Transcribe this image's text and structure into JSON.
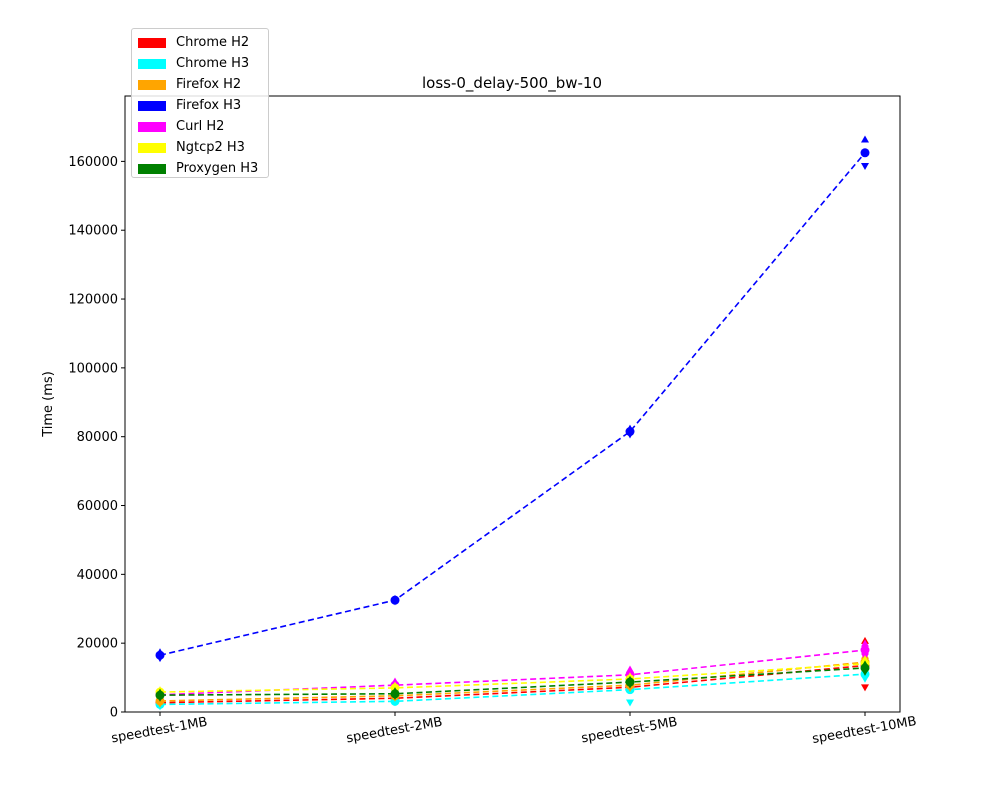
{
  "chart_data": {
    "type": "line",
    "title": "loss-0_delay-500_bw-10",
    "xlabel": "",
    "ylabel": "Time (ms)",
    "categories": [
      "speedtest-1MB",
      "speedtest-2MB",
      "speedtest-5MB",
      "speedtest-10MB"
    ],
    "ylim": [
      0,
      179000
    ],
    "yticks": [
      0,
      20000,
      40000,
      60000,
      80000,
      100000,
      120000,
      140000,
      160000
    ],
    "ytick_labels": [
      "0",
      "20000",
      "40000",
      "60000",
      "80000",
      "100000",
      "120000",
      "140000",
      "160000"
    ],
    "legend_position": "top-left (outside)",
    "grid": false,
    "series": [
      {
        "name": "Chrome H2",
        "color": "#ff0000",
        "values": [
          2700,
          4000,
          7200,
          13500
        ],
        "min": [
          2300,
          3500,
          6500,
          7000
        ],
        "max": [
          3200,
          4500,
          7900,
          20800
        ]
      },
      {
        "name": "Chrome H3",
        "color": "#00ffff",
        "values": [
          2200,
          3100,
          6500,
          11000
        ],
        "min": [
          1500,
          2700,
          2600,
          9500
        ],
        "max": [
          2900,
          3600,
          7200,
          12500
        ]
      },
      {
        "name": "Firefox H2",
        "color": "#ffa500",
        "values": [
          3200,
          4700,
          7800,
          14500
        ],
        "min": [
          2300,
          4000,
          6800,
          12500
        ],
        "max": [
          4200,
          5400,
          8600,
          16500
        ]
      },
      {
        "name": "Firefox H3",
        "color": "#0000ff",
        "values": [
          16500,
          32500,
          81500,
          162500
        ],
        "min": [
          15500,
          32000,
          80500,
          158500
        ],
        "max": [
          17500,
          33000,
          82500,
          166500
        ]
      },
      {
        "name": "Curl H2",
        "color": "#ff00ff",
        "values": [
          5000,
          7800,
          10800,
          18000
        ],
        "min": [
          4500,
          7000,
          9500,
          16000
        ],
        "max": [
          5800,
          9000,
          12500,
          20000
        ]
      },
      {
        "name": "Ngtcp2 H3",
        "color": "#ffff00",
        "values": [
          5800,
          7000,
          9600,
          14000
        ],
        "min": [
          5000,
          6200,
          8500,
          12500
        ],
        "max": [
          6500,
          7800,
          10500,
          15500
        ]
      },
      {
        "name": "Proxygen H3",
        "color": "#008000",
        "values": [
          4900,
          5300,
          8700,
          12800
        ],
        "min": [
          4000,
          4500,
          7800,
          11500
        ],
        "max": [
          5800,
          6200,
          9500,
          14000
        ]
      }
    ]
  }
}
